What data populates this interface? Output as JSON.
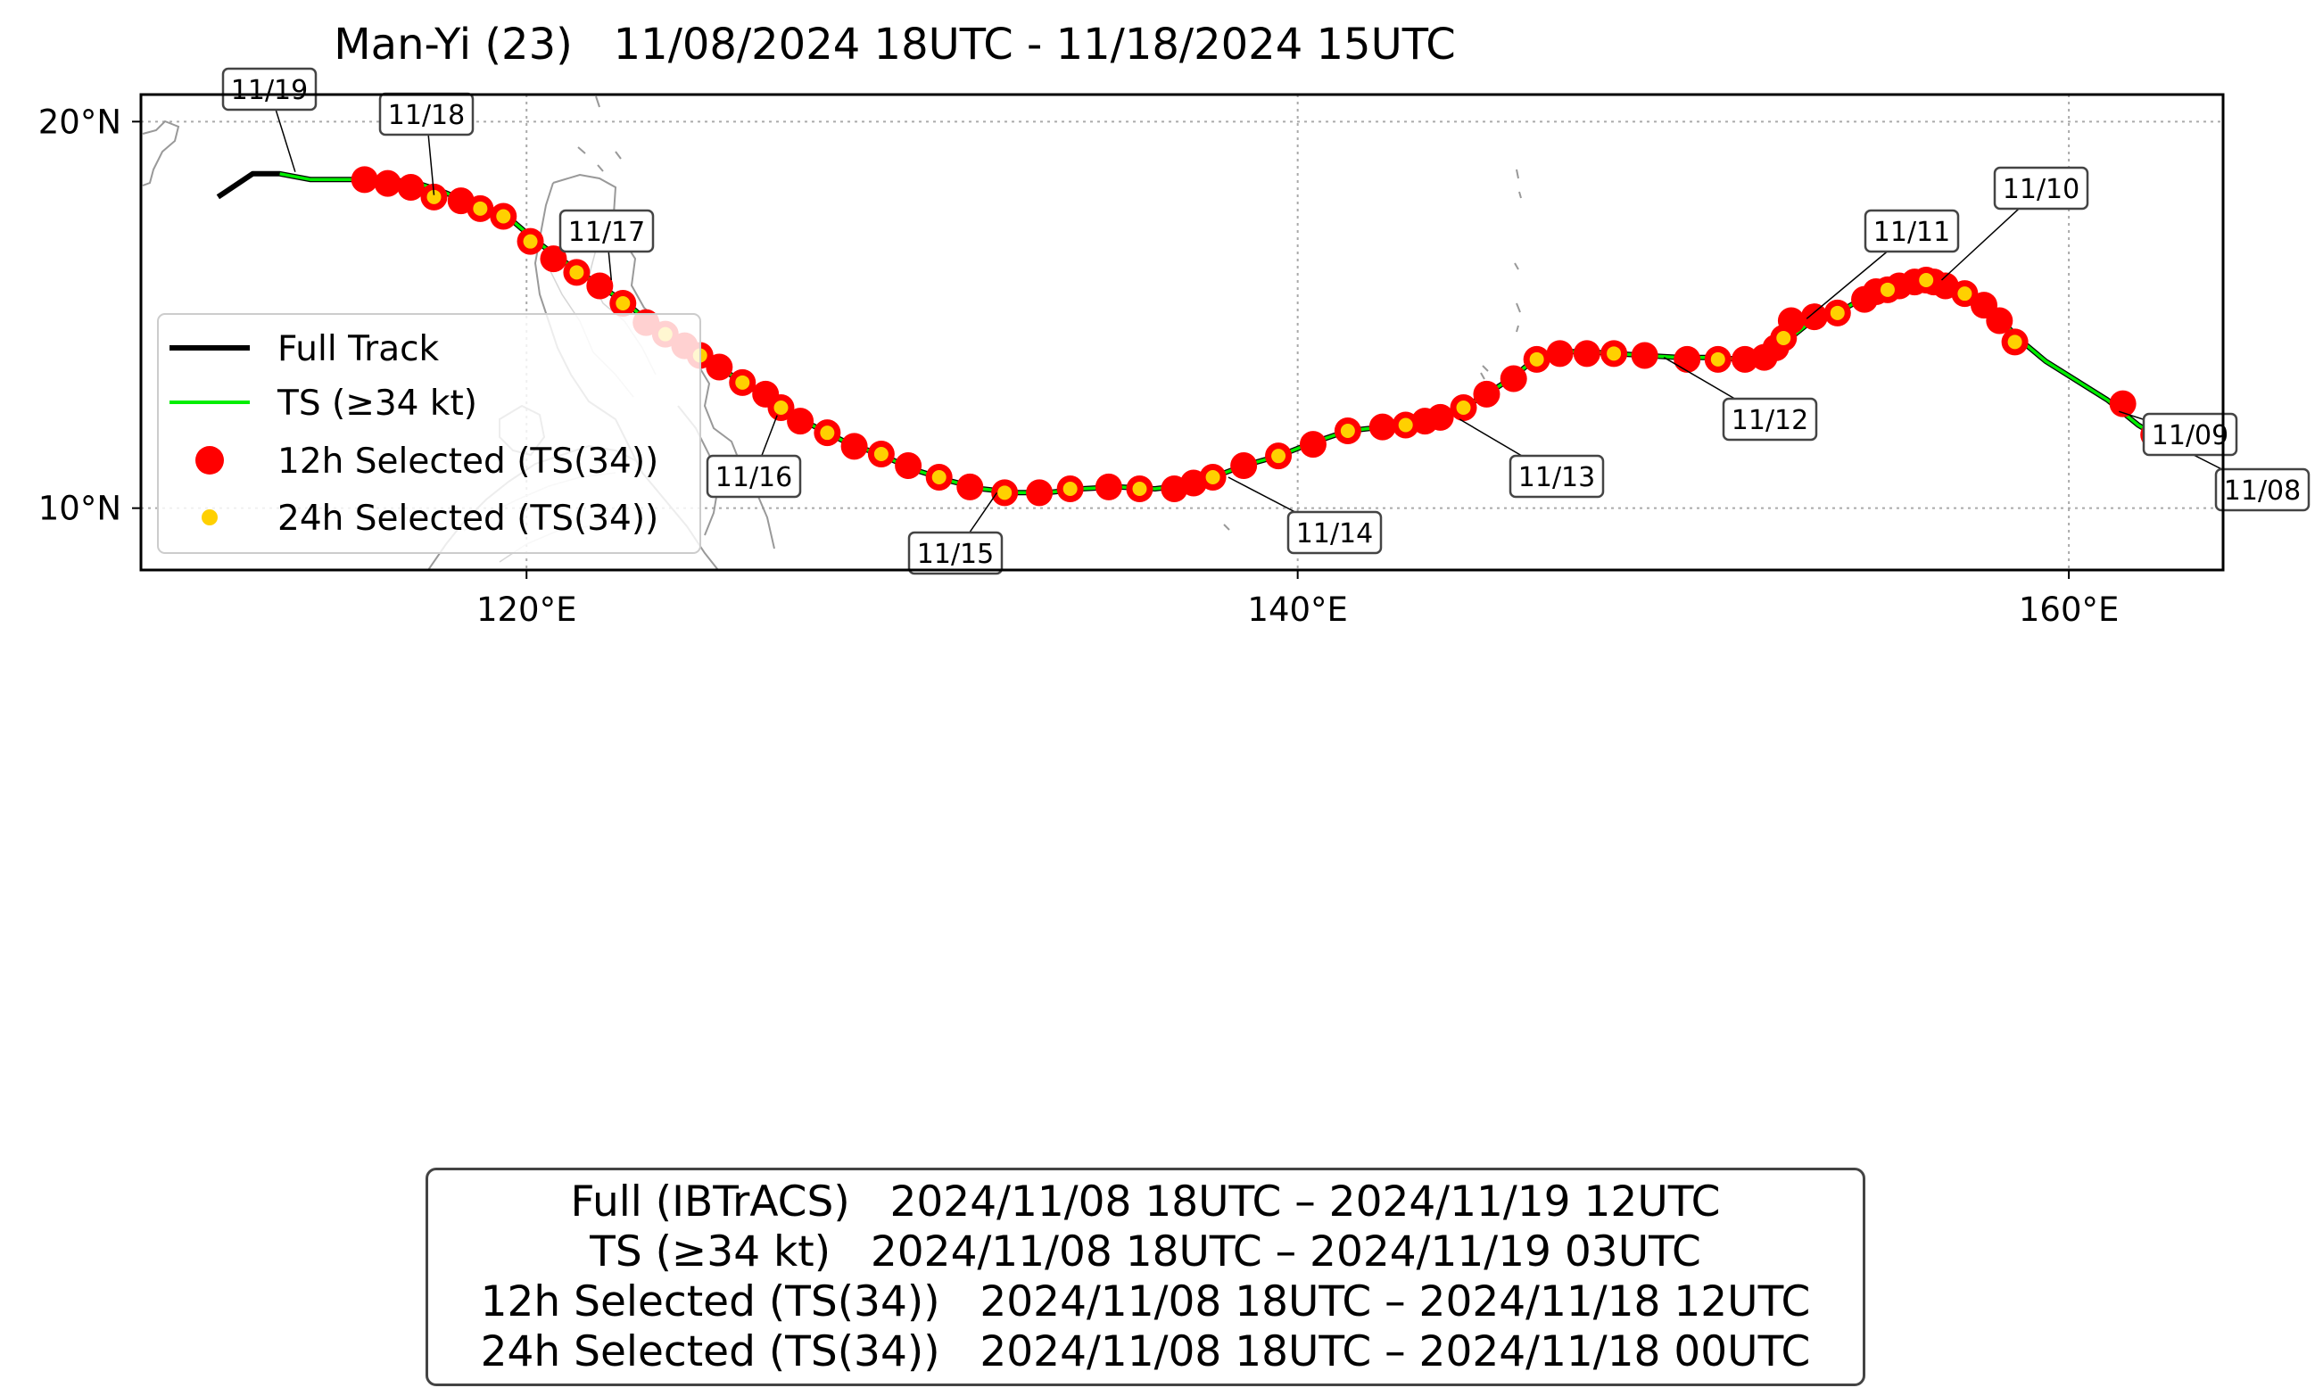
{
  "title": "Man-Yi (23)   11/08/2024 18UTC - 11/18/2024 15UTC",
  "axes": {
    "lat_ticks": [
      "20°N",
      "10°N"
    ],
    "lon_ticks": [
      "120°E",
      "140°E",
      "160°E"
    ],
    "lon_range": [
      110,
      164
    ],
    "lat_range": [
      8.4,
      20.7
    ],
    "grid": true
  },
  "colors": {
    "full_track": "#000000",
    "ts_track": "#00ee00",
    "selected_12h": "#ff0000",
    "selected_24h": "#ffd000",
    "coast": "#999999"
  },
  "legend": {
    "position": "lower-left",
    "items": [
      {
        "label": "Full Track",
        "kind": "line",
        "color": "#000000"
      },
      {
        "label": "TS (≥34 kt)",
        "kind": "line",
        "color": "#00ee00"
      },
      {
        "label": "12h Selected (TS(34))",
        "kind": "dot-large",
        "color": "#ff0000"
      },
      {
        "label": "24h Selected (TS(34))",
        "kind": "dot-small",
        "color": "#ffd000"
      }
    ]
  },
  "day_labels": [
    {
      "text": "11/08",
      "lon": 162.0,
      "lat": 12.0
    },
    {
      "text": "11/09",
      "lon": 161.3,
      "lat": 12.5
    },
    {
      "text": "11/10",
      "lon": 156.7,
      "lat": 15.9
    },
    {
      "text": "11/11",
      "lon": 153.2,
      "lat": 14.9
    },
    {
      "text": "11/12",
      "lon": 149.5,
      "lat": 13.9
    },
    {
      "text": "11/13",
      "lon": 144.2,
      "lat": 12.3
    },
    {
      "text": "11/14",
      "lon": 138.2,
      "lat": 10.8
    },
    {
      "text": "11/15",
      "lon": 132.2,
      "lat": 10.4
    },
    {
      "text": "11/16",
      "lon": 126.5,
      "lat": 12.4
    },
    {
      "text": "11/17",
      "lon": 122.2,
      "lat": 15.9
    },
    {
      "text": "11/18",
      "lon": 117.6,
      "lat": 18.1
    },
    {
      "text": "11/19",
      "lon": 114.0,
      "lat": 18.7
    }
  ],
  "chart_data": {
    "type": "scatter",
    "title": "Man-Yi (23)   11/08/2024 18UTC - 11/18/2024 15UTC",
    "xlabel": "",
    "ylabel": "",
    "xlim": [
      110,
      164
    ],
    "ylim": [
      8.4,
      20.7
    ],
    "series": [
      {
        "name": "Full Track",
        "kind": "line",
        "points": [
          [
            162.3,
            11.85
          ],
          [
            161.8,
            12.15
          ],
          [
            161.0,
            12.8
          ],
          [
            160.2,
            13.3
          ],
          [
            159.4,
            13.8
          ],
          [
            158.8,
            14.3
          ],
          [
            158.3,
            14.8
          ],
          [
            157.8,
            15.25
          ],
          [
            157.2,
            15.6
          ],
          [
            156.7,
            15.8
          ],
          [
            156.3,
            15.9
          ],
          [
            155.8,
            15.85
          ],
          [
            155.2,
            15.7
          ],
          [
            154.6,
            15.4
          ],
          [
            154.0,
            15.05
          ],
          [
            153.4,
            14.9
          ],
          [
            152.9,
            14.5
          ],
          [
            152.5,
            14.1
          ],
          [
            152.0,
            13.85
          ],
          [
            151.5,
            13.85
          ],
          [
            150.8,
            13.9
          ],
          [
            149.9,
            13.9
          ],
          [
            149.0,
            13.95
          ],
          [
            148.2,
            14.0
          ],
          [
            147.5,
            14.05
          ],
          [
            146.8,
            14.05
          ],
          [
            146.2,
            13.9
          ],
          [
            145.6,
            13.4
          ],
          [
            144.9,
            12.95
          ],
          [
            144.3,
            12.6
          ],
          [
            143.7,
            12.4
          ],
          [
            143.3,
            12.25
          ],
          [
            142.8,
            12.2
          ],
          [
            142.2,
            12.1
          ],
          [
            141.3,
            12.0
          ],
          [
            140.4,
            11.7
          ],
          [
            139.5,
            11.35
          ],
          [
            138.6,
            11.1
          ],
          [
            137.8,
            10.8
          ],
          [
            137.1,
            10.6
          ],
          [
            136.3,
            10.5
          ],
          [
            135.3,
            10.55
          ],
          [
            134.4,
            10.5
          ],
          [
            133.5,
            10.4
          ],
          [
            132.7,
            10.4
          ],
          [
            131.8,
            10.5
          ],
          [
            131.0,
            10.7
          ],
          [
            130.2,
            10.95
          ],
          [
            129.6,
            11.2
          ],
          [
            129.0,
            11.45
          ],
          [
            128.4,
            11.65
          ],
          [
            127.8,
            11.95
          ],
          [
            127.2,
            12.25
          ],
          [
            126.6,
            12.65
          ],
          [
            126.0,
            13.0
          ],
          [
            125.3,
            13.45
          ],
          [
            124.6,
            13.9
          ],
          [
            124.0,
            14.3
          ],
          [
            123.3,
            14.7
          ],
          [
            122.6,
            15.3
          ],
          [
            121.9,
            15.75
          ],
          [
            121.4,
            16.1
          ],
          [
            120.8,
            16.5
          ],
          [
            120.2,
            16.95
          ],
          [
            119.5,
            17.55
          ],
          [
            118.9,
            17.8
          ],
          [
            118.4,
            17.95
          ],
          [
            117.8,
            18.2
          ],
          [
            117.2,
            18.4
          ],
          [
            116.5,
            18.5
          ],
          [
            115.8,
            18.5
          ],
          [
            114.4,
            18.5
          ],
          [
            113.6,
            18.65
          ],
          [
            112.9,
            18.65
          ],
          [
            112.0,
            18.05
          ]
        ]
      },
      {
        "name": "TS (≥34 kt)",
        "kind": "line",
        "points": [
          [
            162.3,
            11.85
          ],
          [
            161.8,
            12.15
          ],
          [
            161.0,
            12.8
          ],
          [
            160.2,
            13.3
          ],
          [
            159.4,
            13.8
          ],
          [
            158.8,
            14.3
          ],
          [
            158.3,
            14.8
          ],
          [
            157.8,
            15.25
          ],
          [
            157.2,
            15.6
          ],
          [
            156.7,
            15.8
          ],
          [
            156.3,
            15.9
          ],
          [
            155.8,
            15.85
          ],
          [
            155.2,
            15.7
          ],
          [
            154.6,
            15.4
          ],
          [
            154.0,
            15.05
          ],
          [
            153.4,
            14.9
          ],
          [
            152.9,
            14.5
          ],
          [
            152.5,
            14.1
          ],
          [
            152.0,
            13.85
          ],
          [
            151.5,
            13.85
          ],
          [
            150.8,
            13.9
          ],
          [
            149.9,
            13.9
          ],
          [
            149.0,
            13.95
          ],
          [
            148.2,
            14.0
          ],
          [
            147.5,
            14.05
          ],
          [
            146.8,
            14.05
          ],
          [
            146.2,
            13.9
          ],
          [
            145.6,
            13.4
          ],
          [
            144.9,
            12.95
          ],
          [
            144.3,
            12.6
          ],
          [
            143.7,
            12.4
          ],
          [
            143.3,
            12.25
          ],
          [
            142.8,
            12.2
          ],
          [
            142.2,
            12.1
          ],
          [
            141.3,
            12.0
          ],
          [
            140.4,
            11.7
          ],
          [
            139.5,
            11.35
          ],
          [
            138.6,
            11.1
          ],
          [
            137.8,
            10.8
          ],
          [
            137.1,
            10.6
          ],
          [
            136.3,
            10.5
          ],
          [
            135.3,
            10.55
          ],
          [
            134.4,
            10.5
          ],
          [
            133.5,
            10.4
          ],
          [
            132.7,
            10.4
          ],
          [
            131.8,
            10.5
          ],
          [
            131.0,
            10.7
          ],
          [
            130.2,
            10.95
          ],
          [
            129.6,
            11.2
          ],
          [
            129.0,
            11.45
          ],
          [
            128.4,
            11.65
          ],
          [
            127.8,
            11.95
          ],
          [
            127.2,
            12.25
          ],
          [
            126.6,
            12.65
          ],
          [
            126.0,
            13.0
          ],
          [
            125.3,
            13.45
          ],
          [
            124.6,
            13.9
          ],
          [
            124.0,
            14.3
          ],
          [
            123.3,
            14.7
          ],
          [
            122.6,
            15.3
          ],
          [
            121.9,
            15.75
          ],
          [
            121.4,
            16.1
          ],
          [
            120.8,
            16.5
          ],
          [
            120.2,
            16.95
          ],
          [
            119.5,
            17.55
          ],
          [
            118.9,
            17.8
          ],
          [
            118.4,
            17.95
          ],
          [
            117.8,
            18.2
          ],
          [
            117.2,
            18.4
          ],
          [
            116.5,
            18.5
          ],
          [
            115.8,
            18.5
          ],
          [
            114.4,
            18.5
          ],
          [
            113.6,
            18.65
          ]
        ]
      },
      {
        "name": "12h Selected (TS(34))",
        "kind": "dot-large",
        "points": [
          [
            162.2,
            11.9
          ],
          [
            161.4,
            12.7
          ],
          [
            158.6,
            14.3
          ],
          [
            158.2,
            14.85
          ],
          [
            157.8,
            15.25
          ],
          [
            157.3,
            15.55
          ],
          [
            156.8,
            15.75
          ],
          [
            156.5,
            15.85
          ],
          [
            156.3,
            15.9
          ],
          [
            156.0,
            15.85
          ],
          [
            155.6,
            15.75
          ],
          [
            155.3,
            15.65
          ],
          [
            155.0,
            15.6
          ],
          [
            154.7,
            15.4
          ],
          [
            154.0,
            15.05
          ],
          [
            153.4,
            14.95
          ],
          [
            152.8,
            14.85
          ],
          [
            152.6,
            14.4
          ],
          [
            152.4,
            14.15
          ],
          [
            152.1,
            13.9
          ],
          [
            151.6,
            13.85
          ],
          [
            150.9,
            13.85
          ],
          [
            150.1,
            13.85
          ],
          [
            149.0,
            13.95
          ],
          [
            148.2,
            14.0
          ],
          [
            147.5,
            14.0
          ],
          [
            146.8,
            14.0
          ],
          [
            146.2,
            13.85
          ],
          [
            145.6,
            13.35
          ],
          [
            144.9,
            12.95
          ],
          [
            144.3,
            12.6
          ],
          [
            143.7,
            12.35
          ],
          [
            143.3,
            12.25
          ],
          [
            142.8,
            12.15
          ],
          [
            142.2,
            12.1
          ],
          [
            141.3,
            12.0
          ],
          [
            140.4,
            11.65
          ],
          [
            139.5,
            11.35
          ],
          [
            138.6,
            11.1
          ],
          [
            137.8,
            10.8
          ],
          [
            137.3,
            10.65
          ],
          [
            136.8,
            10.5
          ],
          [
            135.9,
            10.5
          ],
          [
            135.1,
            10.55
          ],
          [
            134.1,
            10.5
          ],
          [
            133.3,
            10.4
          ],
          [
            132.4,
            10.4
          ],
          [
            131.5,
            10.55
          ],
          [
            130.7,
            10.8
          ],
          [
            129.9,
            11.1
          ],
          [
            129.2,
            11.4
          ],
          [
            128.5,
            11.6
          ],
          [
            127.8,
            11.95
          ],
          [
            127.1,
            12.25
          ],
          [
            126.6,
            12.6
          ],
          [
            126.2,
            12.95
          ],
          [
            125.6,
            13.25
          ],
          [
            125.0,
            13.65
          ],
          [
            124.5,
            13.95
          ],
          [
            124.1,
            14.2
          ],
          [
            123.6,
            14.5
          ],
          [
            123.1,
            14.8
          ],
          [
            122.5,
            15.3
          ],
          [
            121.9,
            15.75
          ],
          [
            121.3,
            16.1
          ],
          [
            120.7,
            16.45
          ],
          [
            120.1,
            16.9
          ],
          [
            119.4,
            17.55
          ],
          [
            118.8,
            17.75
          ],
          [
            118.3,
            17.95
          ],
          [
            117.6,
            18.05
          ],
          [
            117.0,
            18.3
          ],
          [
            116.4,
            18.4
          ],
          [
            115.8,
            18.5
          ]
        ]
      },
      {
        "name": "24h Selected (TS(34))",
        "kind": "dot-small",
        "points": [
          [
            162.2,
            11.9
          ],
          [
            158.6,
            14.3
          ],
          [
            157.3,
            15.55
          ],
          [
            156.3,
            15.9
          ],
          [
            155.3,
            15.65
          ],
          [
            154.0,
            15.05
          ],
          [
            152.6,
            14.4
          ],
          [
            150.9,
            13.85
          ],
          [
            148.2,
            14.0
          ],
          [
            146.2,
            13.85
          ],
          [
            144.3,
            12.6
          ],
          [
            142.8,
            12.15
          ],
          [
            141.3,
            12.0
          ],
          [
            139.5,
            11.35
          ],
          [
            137.8,
            10.8
          ],
          [
            135.9,
            10.5
          ],
          [
            134.1,
            10.5
          ],
          [
            132.4,
            10.4
          ],
          [
            130.7,
            10.8
          ],
          [
            129.2,
            11.4
          ],
          [
            127.8,
            11.95
          ],
          [
            126.6,
            12.6
          ],
          [
            125.6,
            13.25
          ],
          [
            124.5,
            13.95
          ],
          [
            123.6,
            14.5
          ],
          [
            122.5,
            15.3
          ],
          [
            121.3,
            16.1
          ],
          [
            120.1,
            16.9
          ],
          [
            119.4,
            17.55
          ],
          [
            118.8,
            17.75
          ],
          [
            117.6,
            18.05
          ]
        ]
      }
    ]
  },
  "summary": {
    "lines": [
      "Full (IBTrACS)   2024/11/08 18UTC – 2024/11/19 12UTC",
      "TS (≥34 kt)   2024/11/08 18UTC – 2024/11/19 03UTC",
      "12h Selected (TS(34))   2024/11/08 18UTC – 2024/11/18 12UTC",
      "24h Selected (TS(34))   2024/11/08 18UTC – 2024/11/18 00UTC"
    ]
  }
}
